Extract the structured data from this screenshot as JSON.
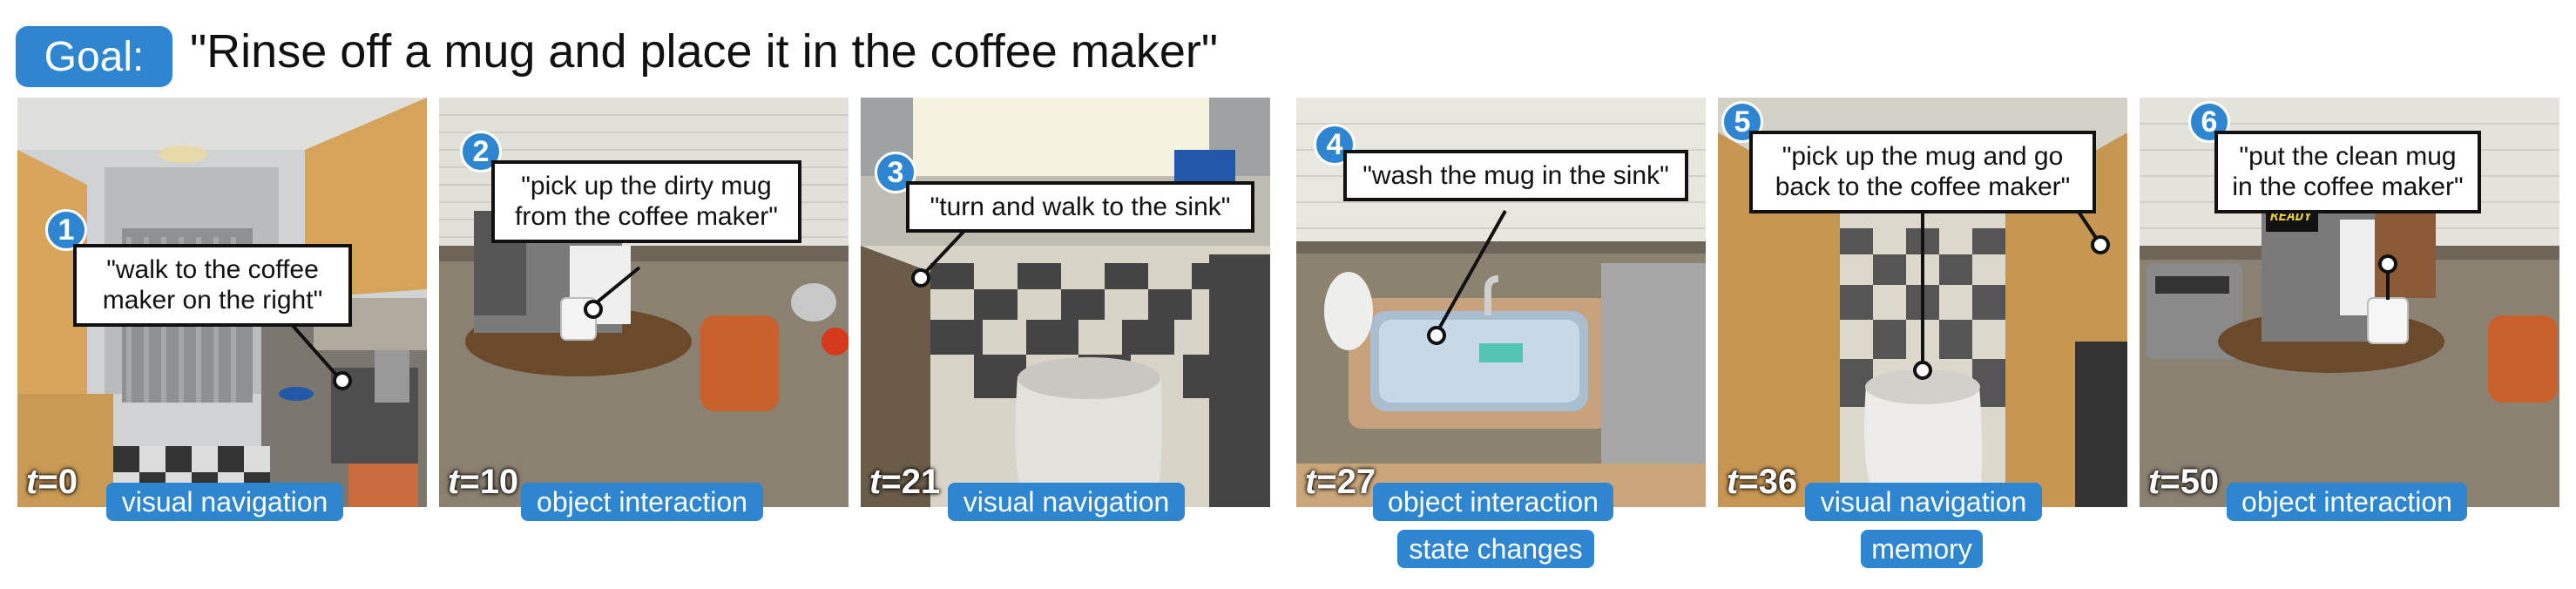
{
  "goal": {
    "label": "Goal:",
    "text": "\"Rinse off a mug and place it in the coffee maker\""
  },
  "frames": [
    {
      "number": "1",
      "caption": "\"walk to the coffee\nmaker on the right\"",
      "time_var": "t",
      "time_value": "=0",
      "tags": [
        "visual navigation"
      ]
    },
    {
      "number": "2",
      "caption": "\"pick up the dirty mug\nfrom the coffee maker\"",
      "time_var": "t",
      "time_value": "=10",
      "tags": [
        "object interaction"
      ]
    },
    {
      "number": "3",
      "caption": "\"turn and walk to the sink\"",
      "time_var": "t",
      "time_value": "=21",
      "tags": [
        "visual navigation"
      ]
    },
    {
      "number": "4",
      "caption": "\"wash the mug in the sink\"",
      "time_var": "t",
      "time_value": "=27",
      "tags": [
        "object interaction",
        "state changes"
      ]
    },
    {
      "number": "5",
      "caption": "\"pick up the mug and go\nback to the coffee maker\"",
      "time_var": "t",
      "time_value": "=36",
      "tags": [
        "visual navigation",
        "memory"
      ]
    },
    {
      "number": "6",
      "caption": "\"put the clean mug\nin the coffee maker\"",
      "time_var": "t",
      "time_value": "=50",
      "tags": [
        "object interaction"
      ]
    }
  ],
  "display_text": "READY"
}
